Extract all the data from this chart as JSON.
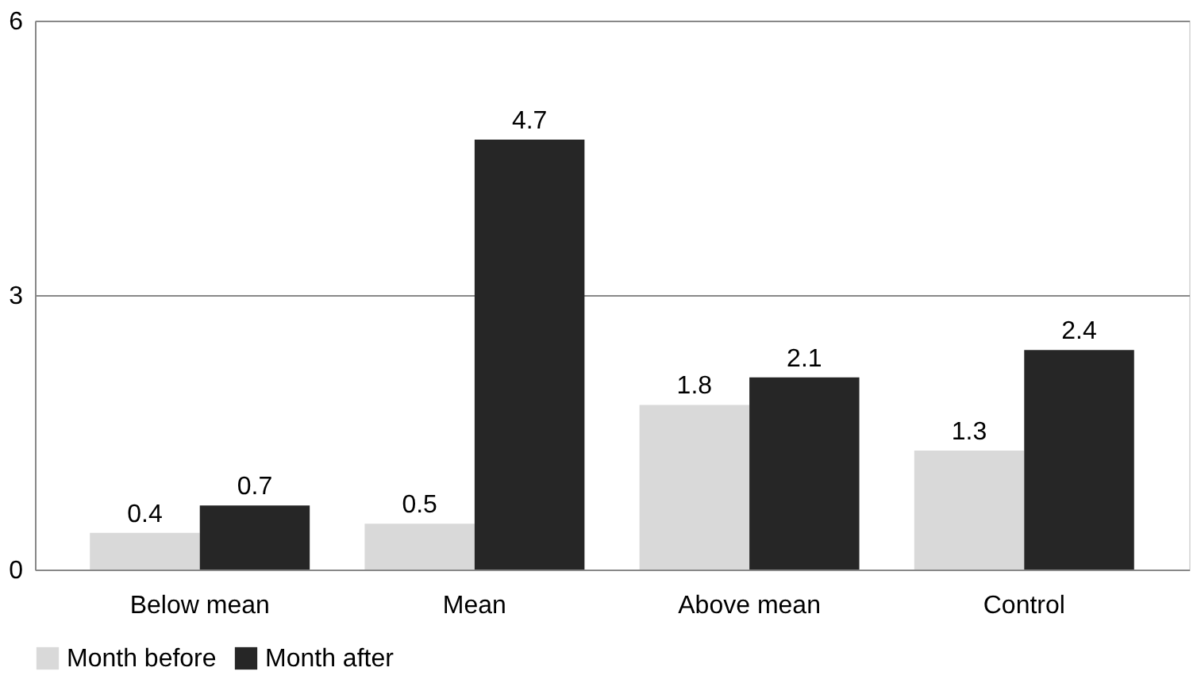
{
  "chart_data": {
    "type": "bar",
    "categories": [
      "Below mean",
      "Mean",
      "Above mean",
      "Control"
    ],
    "series": [
      {
        "name": "Month before",
        "color": "#d9d9d9",
        "values": [
          0.4,
          0.5,
          1.8,
          1.3
        ]
      },
      {
        "name": "Month after",
        "color": "#262626",
        "values": [
          0.7,
          4.7,
          2.1,
          2.4
        ]
      }
    ],
    "ylim": [
      0,
      6
    ],
    "yticks": [
      0,
      3,
      6
    ],
    "grid": "y",
    "legend": "bottom",
    "data_labels": true
  }
}
